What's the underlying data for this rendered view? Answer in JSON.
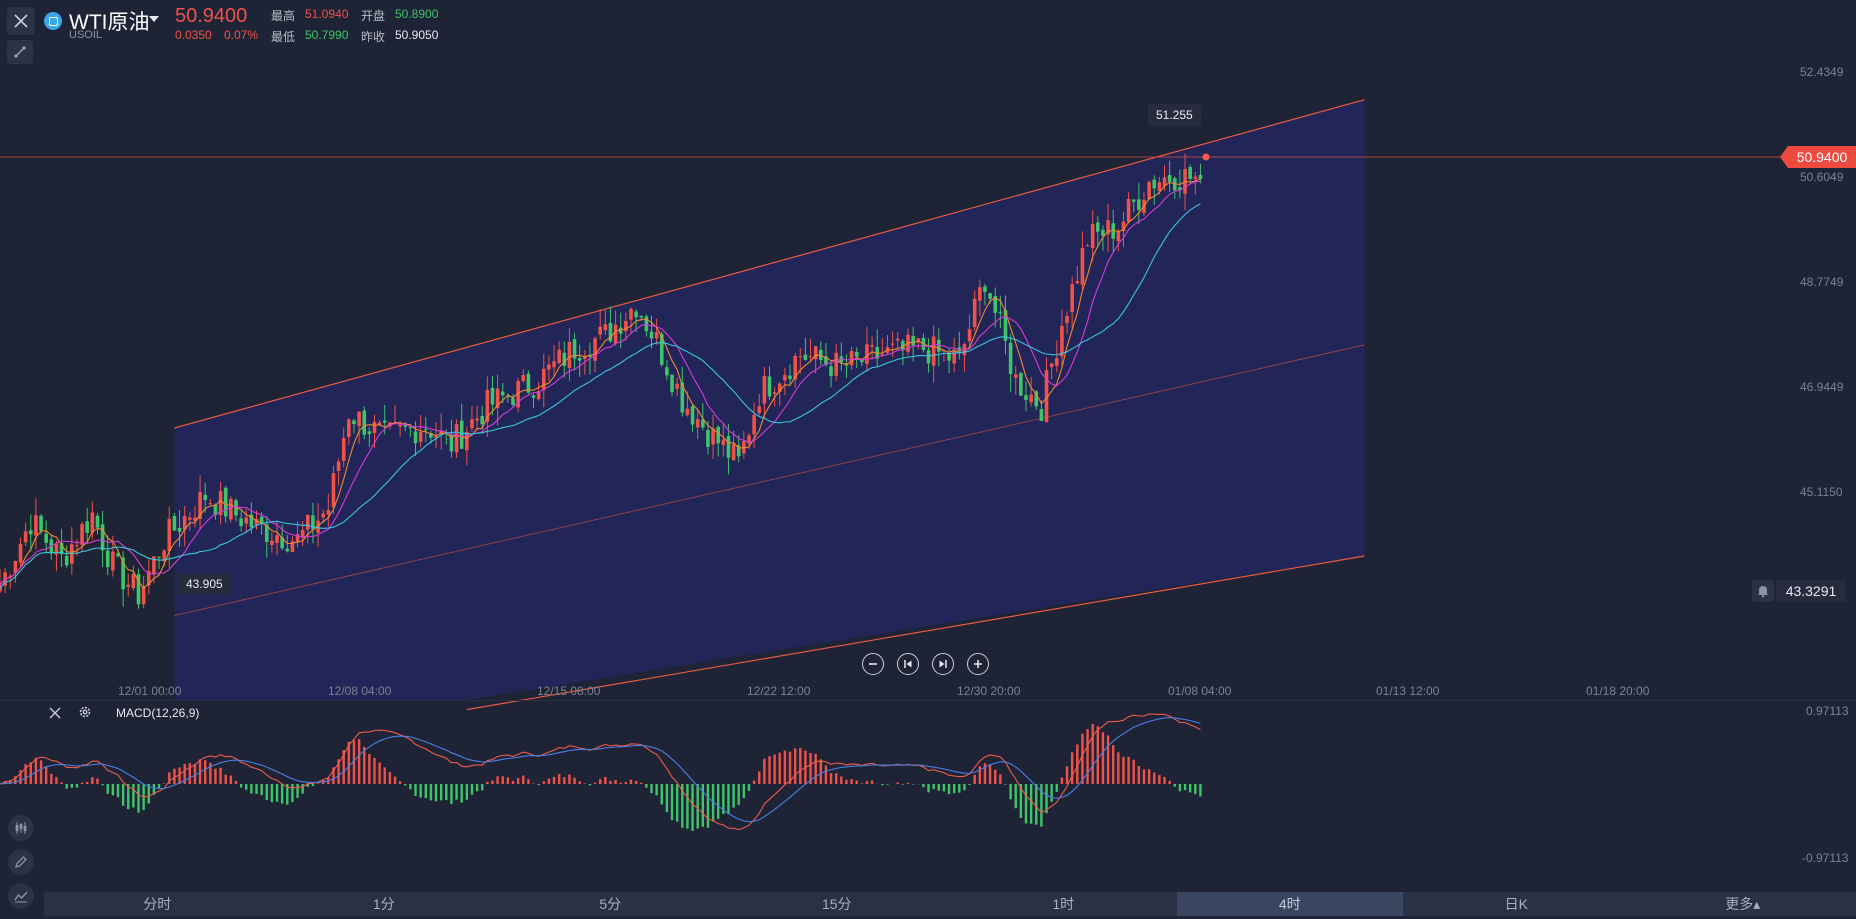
{
  "header": {
    "symbol_name": "WTI原油",
    "symbol_code": "USOIL",
    "price": "50.9400",
    "change": "0.0350",
    "change_pct": "0.07%",
    "quotes": [
      {
        "label": "最高",
        "value": "51.0940",
        "color": "red"
      },
      {
        "label": "开盘",
        "value": "50.8900",
        "color": "green"
      },
      {
        "label": "最低",
        "value": "50.7990",
        "color": "green"
      },
      {
        "label": "昨收",
        "value": "50.9050",
        "color": "white"
      }
    ]
  },
  "icons": [
    "close-icon",
    "trendline-tool-icon",
    "symbol-icon",
    "caret-down-icon",
    "bell-icon",
    "zoom-out-icon",
    "step-back-icon",
    "step-forward-icon",
    "zoom-in-icon",
    "close-icon",
    "gear-icon",
    "candlestick-icon",
    "pencil-icon",
    "indicator-icon"
  ],
  "price_axis": [
    "52.4349",
    "50.6049",
    "48.7749",
    "46.9449",
    "45.1150"
  ],
  "current_price_tag": "50.9400",
  "alert_price": "43.3291",
  "high_label": "51.255",
  "low_label": "43.905",
  "time_axis": [
    "12/01 00:00",
    "12/08 04:00",
    "12/15 08:00",
    "12/22 12:00",
    "12/30 20:00",
    "01/08 04:00",
    "01/13 12:00",
    "01/18 20:00"
  ],
  "macd": {
    "label": "MACD(12,26,9)",
    "axis_top": "0.97113",
    "axis_bottom": "-0.97113"
  },
  "timeframes": [
    {
      "label": "分时",
      "active": false
    },
    {
      "label": "1分",
      "active": false
    },
    {
      "label": "5分",
      "active": false
    },
    {
      "label": "15分",
      "active": false
    },
    {
      "label": "1时",
      "active": false
    },
    {
      "label": "4时",
      "active": true
    },
    {
      "label": "日K",
      "active": false
    },
    {
      "label": "更多▴",
      "active": false
    }
  ],
  "colors": {
    "up": "#f0524a",
    "down": "#3ec56a",
    "channel_fill": "#22265a",
    "channel_line": "#e85a42",
    "ma_fast": "#f08a32",
    "ma_mid": "#d63bd6",
    "ma_slow": "#38c6dc",
    "macd_dif": "#ef5a4a",
    "macd_dea": "#4a7fe6"
  },
  "chart_data": {
    "type": "candlestick",
    "price_range": [
      42.8,
      52.8
    ],
    "anchors": [
      {
        "i": 0,
        "p": 44.6
      },
      {
        "i": 6,
        "p": 45.6
      },
      {
        "i": 12,
        "p": 45.0
      },
      {
        "i": 18,
        "p": 45.7
      },
      {
        "i": 22,
        "p": 44.9
      },
      {
        "i": 27,
        "p": 44.45
      },
      {
        "i": 32,
        "p": 45.3
      },
      {
        "i": 40,
        "p": 46.0
      },
      {
        "i": 50,
        "p": 45.5
      },
      {
        "i": 58,
        "p": 45.3
      },
      {
        "i": 64,
        "p": 45.8
      },
      {
        "i": 68,
        "p": 47.3
      },
      {
        "i": 75,
        "p": 46.9
      },
      {
        "i": 83,
        "p": 47.1
      },
      {
        "i": 88,
        "p": 46.8
      },
      {
        "i": 95,
        "p": 47.4
      },
      {
        "i": 105,
        "p": 47.8
      },
      {
        "i": 112,
        "p": 48.3
      },
      {
        "i": 118,
        "p": 48.5
      },
      {
        "i": 124,
        "p": 49.0
      },
      {
        "i": 128,
        "p": 48.4
      },
      {
        "i": 133,
        "p": 47.5
      },
      {
        "i": 138,
        "p": 47.0
      },
      {
        "i": 144,
        "p": 46.5
      },
      {
        "i": 148,
        "p": 47.6
      },
      {
        "i": 156,
        "p": 48.2
      },
      {
        "i": 164,
        "p": 48.0
      },
      {
        "i": 172,
        "p": 48.2
      },
      {
        "i": 180,
        "p": 48.3
      },
      {
        "i": 187,
        "p": 48.1
      },
      {
        "i": 192,
        "p": 49.4
      },
      {
        "i": 198,
        "p": 47.8
      },
      {
        "i": 203,
        "p": 47.4
      },
      {
        "i": 207,
        "p": 48.7
      },
      {
        "i": 212,
        "p": 50.0
      },
      {
        "i": 218,
        "p": 50.2
      },
      {
        "i": 224,
        "p": 50.9
      },
      {
        "i": 229,
        "p": 51.0
      },
      {
        "i": 234,
        "p": 50.94
      }
    ],
    "channel": {
      "upper": [
        {
          "t": 34,
          "p": 47.05
        },
        {
          "t": 266,
          "p": 52.18
        }
      ],
      "middle": [
        {
          "t": 34,
          "p": 44.12
        },
        {
          "t": 266,
          "p": 48.35
        }
      ],
      "lower": [
        {
          "t": 91,
          "p": 42.65
        },
        {
          "t": 266,
          "p": 45.05
        }
      ]
    }
  }
}
